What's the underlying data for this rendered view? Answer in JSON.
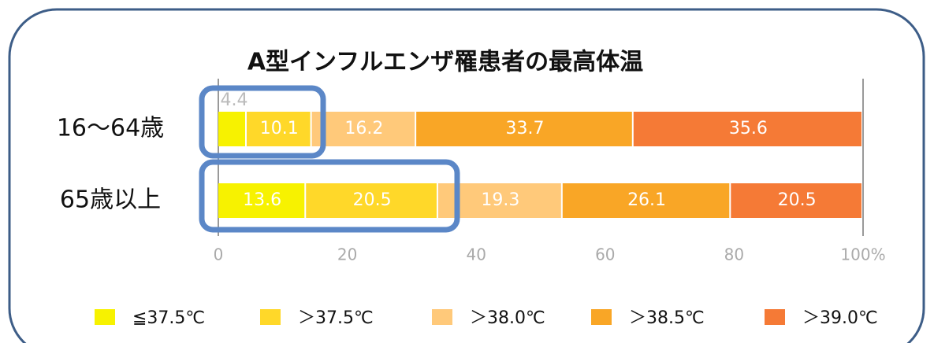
{
  "chart_data": {
    "type": "bar",
    "orientation": "horizontal",
    "stacked": true,
    "title": "A型インフルエンザ罹患者の最高体温",
    "categories": [
      "16〜64歳",
      "65歳以上"
    ],
    "series": [
      {
        "name": "≦37.5℃",
        "color": "#f7f200",
        "values": [
          4.4,
          13.6
        ]
      },
      {
        "name": "＞37.5℃",
        "color": "#ffd829",
        "values": [
          10.1,
          20.5
        ]
      },
      {
        "name": "＞38.0℃",
        "color": "#ffc97a",
        "values": [
          16.2,
          19.3
        ]
      },
      {
        "name": "＞38.5℃",
        "color": "#f9a626",
        "values": [
          33.7,
          26.1
        ]
      },
      {
        "name": "＞39.0℃",
        "color": "#f57a36",
        "values": [
          35.6,
          20.5
        ]
      }
    ],
    "xlim": [
      0,
      100
    ],
    "xticks": [
      0,
      20,
      40,
      60,
      80,
      {
        "value": 100,
        "label": "100%"
      }
    ]
  }
}
